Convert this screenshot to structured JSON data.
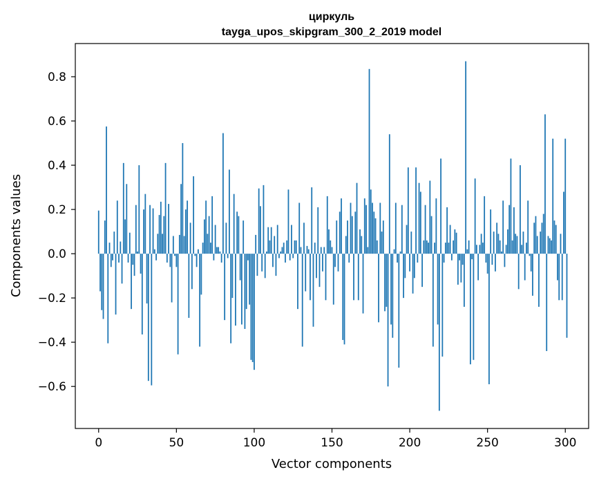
{
  "chart_data": {
    "type": "bar",
    "title_lines": [
      "циркуль",
      "tayga_upos_skipgram_300_2_2019 model"
    ],
    "xlabel": "Vector components",
    "ylabel": "Components values",
    "xlim": [
      -15,
      315
    ],
    "ylim": [
      -0.79,
      0.95
    ],
    "xticks": [
      0,
      50,
      100,
      150,
      200,
      250,
      300
    ],
    "yticks": [
      -0.6,
      -0.4,
      -0.2,
      0.0,
      0.2,
      0.4,
      0.6,
      0.8
    ],
    "ytick_labels": [
      "−0.6",
      "−0.4",
      "−0.2",
      "0.0",
      "0.2",
      "0.4",
      "0.6",
      "0.8"
    ],
    "grid": false,
    "bar_color": "#1f77b4",
    "values": [
      0.195,
      -0.17,
      -0.255,
      -0.295,
      0.15,
      0.575,
      -0.405,
      0.05,
      -0.06,
      -0.03,
      0.1,
      -0.275,
      0.24,
      -0.04,
      0.055,
      -0.135,
      0.41,
      0.155,
      0.315,
      -0.04,
      0.095,
      -0.25,
      -0.05,
      -0.1,
      0.22,
      0.01,
      0.4,
      -0.09,
      -0.365,
      0.2,
      0.27,
      -0.225,
      -0.575,
      0.22,
      -0.595,
      0.205,
      0.02,
      -0.03,
      0.09,
      0.175,
      0.235,
      0.09,
      0.17,
      0.41,
      -0.04,
      0.225,
      -0.06,
      -0.22,
      0.08,
      -0.01,
      -0.06,
      -0.455,
      0.085,
      0.315,
      0.5,
      0.08,
      0.2,
      0.24,
      -0.29,
      0.14,
      -0.16,
      0.35,
      -0.01,
      -0.06,
      0.02,
      -0.42,
      -0.185,
      0.05,
      0.155,
      0.24,
      0.09,
      0.17,
      0.05,
      0.26,
      -0.03,
      0.13,
      0.03,
      0.03,
      0.01,
      -0.04,
      0.545,
      -0.3,
      0.14,
      -0.02,
      0.38,
      -0.405,
      -0.2,
      0.27,
      -0.325,
      0.19,
      0.17,
      -0.12,
      -0.32,
      0.15,
      -0.34,
      -0.25,
      -0.03,
      -0.23,
      -0.48,
      -0.49,
      -0.525,
      0.085,
      -0.1,
      0.295,
      0.215,
      -0.08,
      0.31,
      -0.11,
      0.01,
      0.12,
      0.06,
      0.12,
      -0.06,
      0.08,
      -0.1,
      0.13,
      -0.02,
      0.01,
      0.03,
      0.05,
      -0.04,
      0.06,
      0.29,
      -0.03,
      0.13,
      -0.02,
      0.06,
      0.06,
      -0.25,
      0.23,
      0.03,
      -0.42,
      0.14,
      -0.17,
      0.035,
      0.02,
      -0.21,
      0.3,
      -0.33,
      0.05,
      -0.11,
      0.21,
      -0.15,
      0.03,
      -0.08,
      0.03,
      -0.21,
      0.26,
      0.11,
      0.06,
      0.03,
      -0.23,
      -0.06,
      0.15,
      -0.08,
      0.19,
      0.25,
      -0.39,
      -0.41,
      0.08,
      0.15,
      -0.04,
      0.23,
      0.17,
      -0.21,
      0.19,
      0.32,
      -0.21,
      0.11,
      0.08,
      -0.27,
      0.25,
      0.22,
      0.03,
      0.835,
      0.29,
      0.23,
      0.19,
      0.16,
      0.06,
      -0.31,
      0.23,
      0.1,
      0.15,
      -0.26,
      -0.24,
      -0.6,
      0.54,
      -0.32,
      -0.38,
      0.02,
      0.23,
      -0.04,
      -0.515,
      0.01,
      0.22,
      -0.2,
      -0.11,
      0.13,
      0.39,
      -0.08,
      0.1,
      -0.18,
      -0.11,
      0.39,
      -0.04,
      0.32,
      0.28,
      -0.15,
      0.06,
      0.22,
      0.06,
      0.05,
      0.33,
      0.17,
      -0.42,
      0.05,
      0.25,
      -0.32,
      -0.71,
      0.43,
      -0.465,
      -0.04,
      0.05,
      0.21,
      0.05,
      0.13,
      -0.03,
      0.06,
      0.11,
      0.095,
      -0.14,
      -0.03,
      -0.13,
      -0.05,
      -0.24,
      0.87,
      0.02,
      0.06,
      -0.5,
      -0.025,
      -0.48,
      0.34,
      0.04,
      -0.12,
      0.04,
      0.09,
      0.05,
      0.26,
      -0.04,
      -0.09,
      -0.59,
      0.2,
      -0.05,
      0.1,
      -0.08,
      0.14,
      0.09,
      0.06,
      0.01,
      0.24,
      -0.06,
      0.04,
      0.11,
      0.22,
      0.43,
      0.06,
      0.21,
      0.09,
      0.08,
      -0.16,
      0.4,
      0.04,
      0.1,
      -0.12,
      0.05,
      0.24,
      -0.01,
      -0.08,
      -0.19,
      0.14,
      0.17,
      0.08,
      -0.24,
      0.1,
      0.14,
      0.18,
      0.63,
      -0.44,
      0.08,
      0.07,
      0.06,
      0.52,
      0.15,
      0.13,
      -0.12,
      -0.21,
      0.09,
      -0.21,
      0.28,
      0.52,
      -0.38
    ]
  }
}
